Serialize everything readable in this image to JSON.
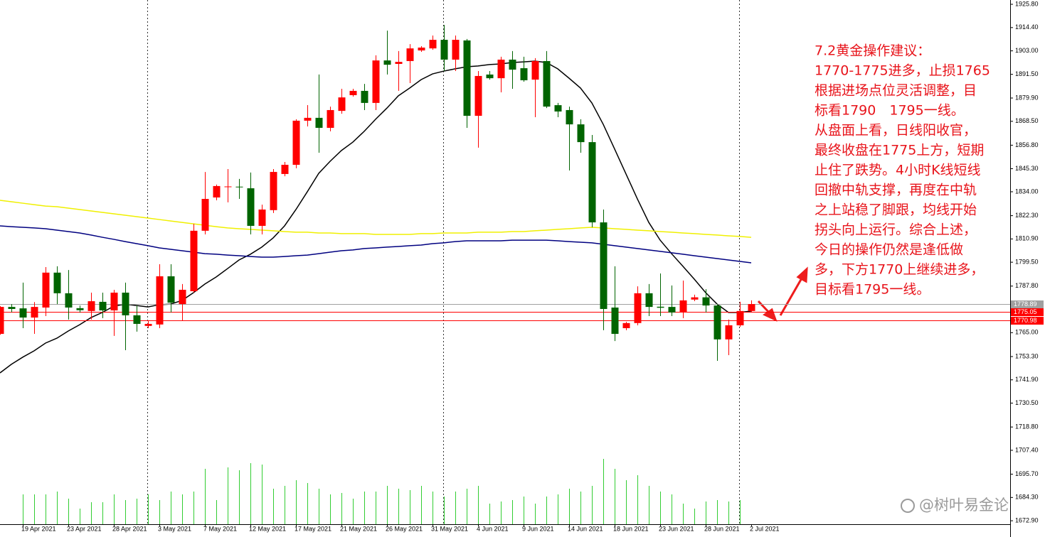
{
  "chart_data": {
    "type": "candlestick",
    "categories": [
      null,
      null,
      "19 Apr 2021",
      null,
      null,
      null,
      "23 Apr 2021",
      null,
      null,
      null,
      "28 Apr 2021",
      null,
      null,
      null,
      "3 May 2021",
      null,
      null,
      null,
      "7 May 2021",
      null,
      null,
      null,
      "12 May 2021",
      null,
      null,
      null,
      "17 May 2021",
      null,
      null,
      null,
      "21 May 2021",
      null,
      null,
      null,
      "26 May 2021",
      null,
      null,
      null,
      "31 May 2021",
      null,
      null,
      null,
      "4 Jun 2021",
      null,
      null,
      null,
      "9 Jun 2021",
      null,
      null,
      null,
      "14 Jun 2021",
      null,
      null,
      null,
      "18 Jun 2021",
      null,
      null,
      null,
      "23 Jun 2021",
      null,
      null,
      null,
      "28 Jun 2021",
      null,
      null,
      null,
      "2 Jul 2021"
    ],
    "open": [
      1764.4,
      1777.6,
      1776.9,
      1772.4,
      1777.3,
      1794.4,
      1784.3,
      1777.0,
      1775.6,
      1780.1,
      1775.9,
      1784.6,
      1773.5,
      1768.3,
      1769.0,
      1792.6,
      1779.0,
      1785.3,
      1814.9,
      1831.2,
      1836.4,
      1836.5,
      1835.7,
      1817.3,
      1825.0,
      1842.7,
      1847.2,
      1868.8,
      1870.2,
      1865.3,
      1873.6,
      1881.3,
      1883.4,
      1877.5,
      1898.3,
      1896.6,
      1898.0,
      1903.2,
      1904.2,
      1908.4,
      1898.7,
      1908.1,
      1871.2,
      1891.4,
      1889.6,
      1898.7,
      1894.5,
      1888.9,
      1898.0,
      1876.4,
      1874.0,
      1867.0,
      1858.3,
      1819.0,
      1777.3,
      1767.2,
      1769.7,
      1784.3,
      1777.7,
      1777.6,
      1774.9,
      1781.2,
      1782.3,
      1778.3,
      1761.7,
      1768.6,
      1775.6
    ],
    "high": [
      1778.0,
      1779.0,
      1789.5,
      1780.0,
      1797.1,
      1797.5,
      1795.7,
      1778.3,
      1784.6,
      1784.6,
      1786.0,
      1789.5,
      1778.3,
      1770.7,
      1798.5,
      1798.5,
      1788.8,
      1818.3,
      1843.7,
      1837.5,
      1845.1,
      1840.3,
      1843.4,
      1827.7,
      1845.1,
      1848.6,
      1869.5,
      1876.4,
      1891.4,
      1875.7,
      1884.4,
      1884.4,
      1886.8,
      1900.8,
      1912.9,
      1902.9,
      1906.3,
      1905.3,
      1910.5,
      1915.7,
      1910.5,
      1908.8,
      1893.1,
      1893.1,
      1900.1,
      1902.9,
      1900.1,
      1899.4,
      1902.9,
      1877.5,
      1875.7,
      1869.5,
      1861.8,
      1825.3,
      1797.5,
      1770.3,
      1787.7,
      1788.8,
      1794.0,
      1788.1,
      1790.5,
      1783.6,
      1786.3,
      1779.0,
      1771.4,
      1780.1,
      1780.8
    ],
    "low": [
      1764.0,
      1775.0,
      1767.2,
      1764.4,
      1773.1,
      1779.0,
      1771.4,
      1774.8,
      1771.4,
      1772.1,
      1763.4,
      1756.4,
      1765.5,
      1767.2,
      1767.2,
      1774.9,
      1770.7,
      1784.6,
      1813.1,
      1829.8,
      1828.8,
      1830.5,
      1813.1,
      1813.1,
      1823.6,
      1841.6,
      1845.5,
      1866.0,
      1853.1,
      1863.6,
      1872.2,
      1880.6,
      1874.0,
      1874.0,
      1891.4,
      1883.4,
      1887.2,
      1902.5,
      1903.5,
      1893.1,
      1893.1,
      1865.3,
      1855.6,
      1888.9,
      1882.7,
      1884.4,
      1887.9,
      1870.5,
      1875.0,
      1870.5,
      1844.4,
      1853.1,
      1816.6,
      1766.2,
      1760.9,
      1766.2,
      1768.6,
      1773.1,
      1773.1,
      1773.1,
      1772.1,
      1780.4,
      1774.9,
      1751.2,
      1754.0,
      1767.9,
      1775.0
    ],
    "close": [
      1777.6,
      1776.6,
      1772.4,
      1777.6,
      1794.4,
      1784.3,
      1777.3,
      1776.0,
      1780.4,
      1775.9,
      1784.6,
      1773.5,
      1769.3,
      1769.3,
      1792.6,
      1779.7,
      1786.0,
      1814.9,
      1830.5,
      1836.8,
      1836.6,
      1836.2,
      1817.3,
      1825.3,
      1843.7,
      1847.2,
      1868.8,
      1870.2,
      1865.3,
      1874.0,
      1880.2,
      1883.4,
      1877.5,
      1898.3,
      1896.2,
      1897.6,
      1904.2,
      1904.6,
      1908.4,
      1898.7,
      1908.4,
      1871.2,
      1890.7,
      1889.6,
      1898.7,
      1893.8,
      1888.6,
      1898.0,
      1875.7,
      1873.3,
      1867.0,
      1858.3,
      1819.0,
      1776.6,
      1764.4,
      1769.7,
      1784.3,
      1777.6,
      1777.2,
      1774.9,
      1780.8,
      1782.3,
      1778.3,
      1761.7,
      1768.6,
      1775.6,
      1779.0
    ],
    "up_color": "#ff0000",
    "down_color": "#006400",
    "lines": [
      {
        "color": "#000000",
        "values": [
          1745.3,
          1749.5,
          1753.0,
          1756.1,
          1759.9,
          1762.3,
          1765.8,
          1768.9,
          1772.4,
          1774.9,
          1778.0,
          1779.0,
          1778.3,
          1777.6,
          1778.7,
          1779.0,
          1780.8,
          1784.6,
          1788.8,
          1792.3,
          1796.4,
          1800.6,
          1803.4,
          1806.9,
          1811.4,
          1817.3,
          1825.3,
          1834.0,
          1843.0,
          1848.9,
          1854.2,
          1858.3,
          1863.6,
          1869.5,
          1875.0,
          1881.0,
          1884.8,
          1888.9,
          1891.7,
          1893.1,
          1894.2,
          1895.2,
          1895.6,
          1896.3,
          1896.6,
          1897.3,
          1897.6,
          1898.0,
          1897.3,
          1894.2,
          1889.6,
          1884.8,
          1877.5,
          1867.0,
          1854.9,
          1842.7,
          1830.5,
          1819.0,
          1810.3,
          1803.7,
          1797.5,
          1791.2,
          1784.6,
          1779.0,
          1774.9,
          1774.9,
          1775.6
        ]
      },
      {
        "color": "#000080",
        "values": [
          1817.3,
          1816.9,
          1816.6,
          1816.3,
          1815.9,
          1815.2,
          1814.5,
          1813.8,
          1812.8,
          1811.7,
          1810.7,
          1809.6,
          1808.6,
          1807.6,
          1806.5,
          1805.8,
          1805.1,
          1804.4,
          1803.7,
          1803.4,
          1803.0,
          1802.7,
          1802.3,
          1802.0,
          1802.0,
          1802.3,
          1802.7,
          1803.0,
          1803.7,
          1804.4,
          1805.1,
          1805.5,
          1806.2,
          1806.5,
          1806.9,
          1807.2,
          1807.6,
          1807.9,
          1808.6,
          1809.0,
          1809.6,
          1810.0,
          1810.0,
          1810.0,
          1810.0,
          1810.3,
          1810.3,
          1810.3,
          1810.3,
          1810.0,
          1809.6,
          1809.3,
          1809.0,
          1808.3,
          1807.6,
          1806.9,
          1806.2,
          1805.5,
          1804.8,
          1804.1,
          1803.4,
          1802.7,
          1802.0,
          1801.3,
          1800.6,
          1799.9,
          1799.2
        ]
      },
      {
        "color": "#f0f000",
        "values": [
          1829.8,
          1829.1,
          1828.4,
          1827.7,
          1827.0,
          1826.7,
          1826.0,
          1825.3,
          1824.6,
          1823.9,
          1823.2,
          1822.5,
          1821.8,
          1821.1,
          1820.4,
          1819.7,
          1819.0,
          1818.3,
          1817.6,
          1816.9,
          1816.3,
          1815.9,
          1815.6,
          1815.2,
          1814.9,
          1814.5,
          1814.2,
          1814.2,
          1813.8,
          1813.8,
          1813.5,
          1813.5,
          1813.5,
          1813.1,
          1813.1,
          1813.1,
          1813.1,
          1813.5,
          1813.5,
          1813.8,
          1813.8,
          1813.8,
          1814.2,
          1814.2,
          1814.2,
          1814.5,
          1814.5,
          1814.9,
          1815.2,
          1815.6,
          1815.9,
          1816.3,
          1816.6,
          1816.3,
          1815.9,
          1815.6,
          1815.2,
          1814.9,
          1814.5,
          1814.2,
          1813.8,
          1813.5,
          1813.1,
          1812.8,
          1812.4,
          1812.1,
          1811.7
        ]
      }
    ],
    "volume": {
      "color": "#32cd32",
      "values": [
        null,
        null,
        42,
        42,
        42,
        46,
        36,
        22,
        31,
        31,
        42,
        34,
        36,
        42,
        34,
        46,
        42,
        46,
        78,
        34,
        80,
        76,
        86,
        84,
        50,
        54,
        62,
        58,
        50,
        42,
        44,
        36,
        46,
        46,
        54,
        50,
        48,
        54,
        46,
        39,
        46,
        50,
        54,
        29,
        32,
        34,
        39,
        29,
        39,
        42,
        50,
        46,
        54,
        92,
        78,
        62,
        69,
        54,
        46,
        42,
        29,
        22,
        32,
        34,
        32,
        34,
        null
      ]
    },
    "y2lim": [
      0,
      738
    ],
    "ylim": [
      1671.2,
      1927.9
    ],
    "yticks": [
      {
        "value": 1925.8,
        "label": "1925.80"
      },
      {
        "value": 1914.4,
        "label": "1914.40"
      },
      {
        "value": 1903.0,
        "label": "1903.00"
      },
      {
        "value": 1891.5,
        "label": "1891.50"
      },
      {
        "value": 1879.9,
        "label": "1879.90"
      },
      {
        "value": 1868.5,
        "label": "1868.50"
      },
      {
        "value": 1856.8,
        "label": "1856.80"
      },
      {
        "value": 1845.3,
        "label": "1845.30"
      },
      {
        "value": 1834.0,
        "label": "1834.00"
      },
      {
        "value": 1822.3,
        "label": "1822.30"
      },
      {
        "value": 1810.9,
        "label": "1810.90"
      },
      {
        "value": 1799.5,
        "label": "1799.50"
      },
      {
        "value": 1787.8,
        "label": "1787.80"
      },
      {
        "value": 1765.0,
        "label": "1765.00"
      },
      {
        "value": 1753.3,
        "label": "1753.30"
      },
      {
        "value": 1741.9,
        "label": "1741.90"
      },
      {
        "value": 1730.5,
        "label": "1730.50"
      },
      {
        "value": 1718.8,
        "label": "1718.80"
      },
      {
        "value": 1707.4,
        "label": "1707.40"
      },
      {
        "value": 1695.7,
        "label": "1695.70"
      },
      {
        "value": 1684.3,
        "label": "1684.30"
      },
      {
        "value": 1672.9,
        "label": "1672.90"
      }
    ],
    "hlines": [
      {
        "value": 1778.89,
        "color": "#a0a0a0"
      },
      {
        "value": 1775.05,
        "color": "#ff0000"
      },
      {
        "value": 1770.98,
        "color": "#ff0000"
      }
    ],
    "annotation": [
      "7.2黄金操作建议：",
      "1770-1775进多，止损1765",
      "根据进场点位灵活调整，目",
      "标看1790　1795一线。",
      "从盘面上看，日线阳收官，",
      "最终收盘在1775上方，短期",
      "止住了跌势。4小时K线短线",
      "回撤中轨支撑，再度在中轨",
      "之上站稳了脚跟，均线开始",
      "拐头向上运行。综合上述，",
      "今日的操作仍然是逢低做",
      "多，下方1770上继续进多，",
      "目标看1795一线。"
    ],
    "annotation_color": "#e8141b",
    "watermark": "@树叶易金论"
  }
}
